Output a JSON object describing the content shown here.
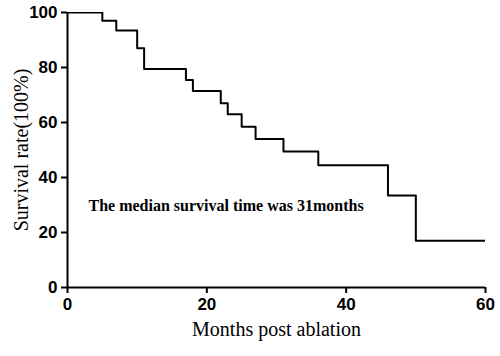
{
  "chart_data": {
    "type": "line",
    "x": [
      0,
      5,
      7,
      10,
      11,
      17,
      18,
      22,
      23,
      25,
      27,
      31,
      36,
      46,
      50,
      60
    ],
    "values": [
      100,
      97,
      93.5,
      87,
      79.5,
      75.5,
      71.5,
      67,
      63,
      58.5,
      54,
      49.5,
      44.5,
      33.5,
      17,
      17
    ],
    "color": "#000000",
    "line_style": "step",
    "xlabel": "Months post ablation",
    "ylabel": "Survival rate(100%)",
    "annotation": "The median survival time was 31months",
    "xlim": [
      0,
      60
    ],
    "xticks": [
      0,
      20,
      40,
      60
    ],
    "ylim": [
      0,
      100
    ],
    "yticks": [
      0,
      20,
      40,
      60,
      80,
      100
    ],
    "grid": false
  }
}
